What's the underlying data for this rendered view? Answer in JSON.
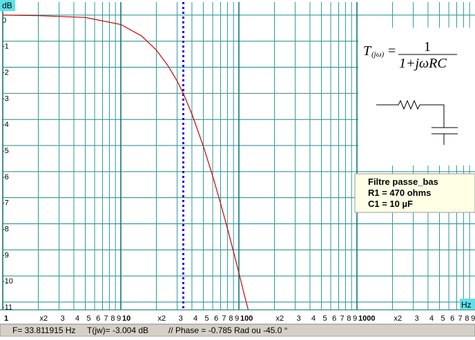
{
  "chart_data": {
    "type": "line",
    "xscale": "log",
    "grid": true,
    "x_label": "Hz",
    "y_label": "dB",
    "x": [
      1,
      2,
      5,
      10,
      15,
      20,
      25,
      30,
      33.8,
      40,
      50,
      60,
      70,
      80,
      90,
      100,
      110,
      120
    ],
    "series": [
      {
        "color": "#cc0000",
        "values": [
          0,
          -0.02,
          -0.09,
          -0.36,
          -0.8,
          -1.34,
          -1.93,
          -2.53,
          -3.0,
          -3.79,
          -5.03,
          -6.17,
          -7.22,
          -8.18,
          -9.07,
          -9.88,
          -10.64,
          -11.3
        ]
      }
    ],
    "xlim": [
      1,
      10000
    ],
    "ylim": [
      -11.3,
      0.5
    ],
    "yticks": [
      0,
      -1,
      -2,
      -3,
      -4,
      -5,
      -6,
      -7,
      -8,
      -9,
      -10,
      -11
    ],
    "xticks": [
      1,
      {
        "value": 2,
        "label": "x2"
      },
      3,
      4,
      5,
      6,
      7,
      8,
      9,
      10,
      {
        "value": 20,
        "label": "x2"
      },
      {
        "value": 30,
        "label": "3"
      },
      {
        "value": 40,
        "label": "4"
      },
      {
        "value": 50,
        "label": "5"
      },
      {
        "value": 60,
        "label": "6"
      },
      {
        "value": 70,
        "label": "7"
      },
      {
        "value": 80,
        "label": "8"
      },
      {
        "value": 90,
        "label": "9"
      },
      100,
      {
        "value": 200,
        "label": "x2"
      },
      {
        "value": 300,
        "label": "3"
      },
      {
        "value": 400,
        "label": "4"
      },
      {
        "value": 500,
        "label": "5"
      },
      {
        "value": 600,
        "label": "6"
      },
      {
        "value": 700,
        "label": "7"
      },
      {
        "value": 800,
        "label": "8"
      },
      {
        "value": 900,
        "label": "9"
      },
      1000,
      {
        "value": 2000,
        "label": "x2"
      },
      {
        "value": 3000,
        "label": "3"
      },
      {
        "value": 4000,
        "label": "4"
      },
      {
        "value": 5000,
        "label": "5"
      },
      {
        "value": 6000,
        "label": "6"
      },
      {
        "value": 7000,
        "label": "7"
      },
      {
        "value": 8000,
        "label": "8"
      },
      {
        "value": 9000,
        "label": "9"
      }
    ],
    "cursor": {
      "x": 33.811915,
      "y": -3.004
    },
    "formula": {
      "lhs": "T",
      "sub": "(jω)",
      "eq": "=",
      "num": "1",
      "den": "1+jωRC"
    },
    "info": [
      "Filtre passe_bas",
      "R1 =  470  ohms",
      "C1 =   10 µF"
    ],
    "status": [
      "F= 33.811915 Hz",
      "T(jw)=   -3.004 dB",
      "// Phase =  -0.785 Rad ou  -45.0 °"
    ]
  }
}
